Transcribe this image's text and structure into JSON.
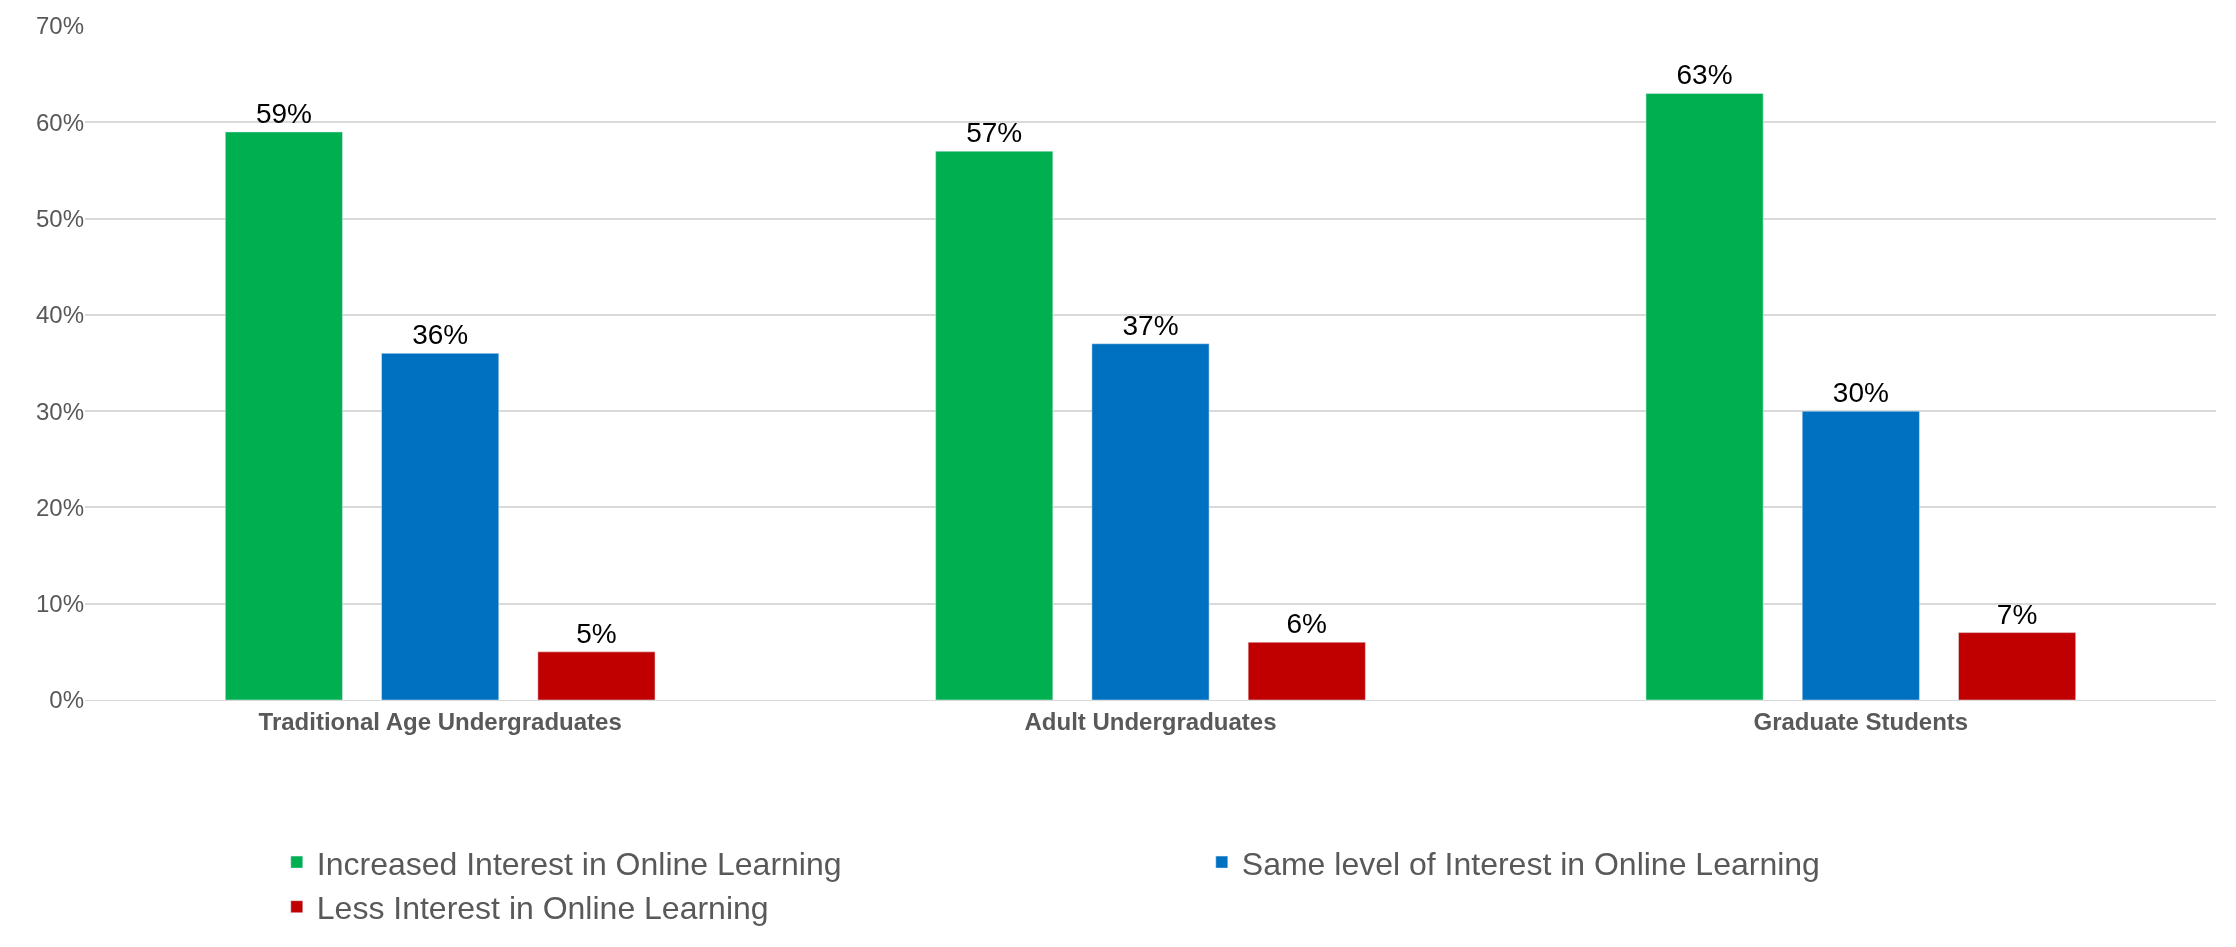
{
  "chart_data": {
    "type": "bar",
    "categories": [
      "Traditional Age Undergraduates",
      "Adult Undergraduates",
      "Graduate Students"
    ],
    "series": [
      {
        "name": "Increased Interest in Online Learning",
        "color": "#00b050",
        "values": [
          59,
          57,
          63
        ],
        "value_labels": [
          "59%",
          "57%",
          "63%"
        ]
      },
      {
        "name": "Same level of Interest in Online Learning",
        "color": "#0070c0",
        "values": [
          36,
          37,
          30
        ],
        "value_labels": [
          "36%",
          "37%",
          "30%"
        ]
      },
      {
        "name": "Less Interest in Online Learning",
        "color": "#c00000",
        "values": [
          5,
          6,
          7
        ],
        "value_labels": [
          "5%",
          "6%",
          "7%"
        ]
      }
    ],
    "ylim": [
      0,
      70
    ],
    "yticks": [
      {
        "value": 0,
        "label": "0%"
      },
      {
        "value": 10,
        "label": "10%"
      },
      {
        "value": 20,
        "label": "20%"
      },
      {
        "value": 30,
        "label": "30%"
      },
      {
        "value": 40,
        "label": "40%"
      },
      {
        "value": 50,
        "label": "50%"
      },
      {
        "value": 60,
        "label": "60%"
      },
      {
        "value": 70,
        "label": "70%"
      }
    ],
    "grid": "y",
    "legend": "bottom"
  }
}
